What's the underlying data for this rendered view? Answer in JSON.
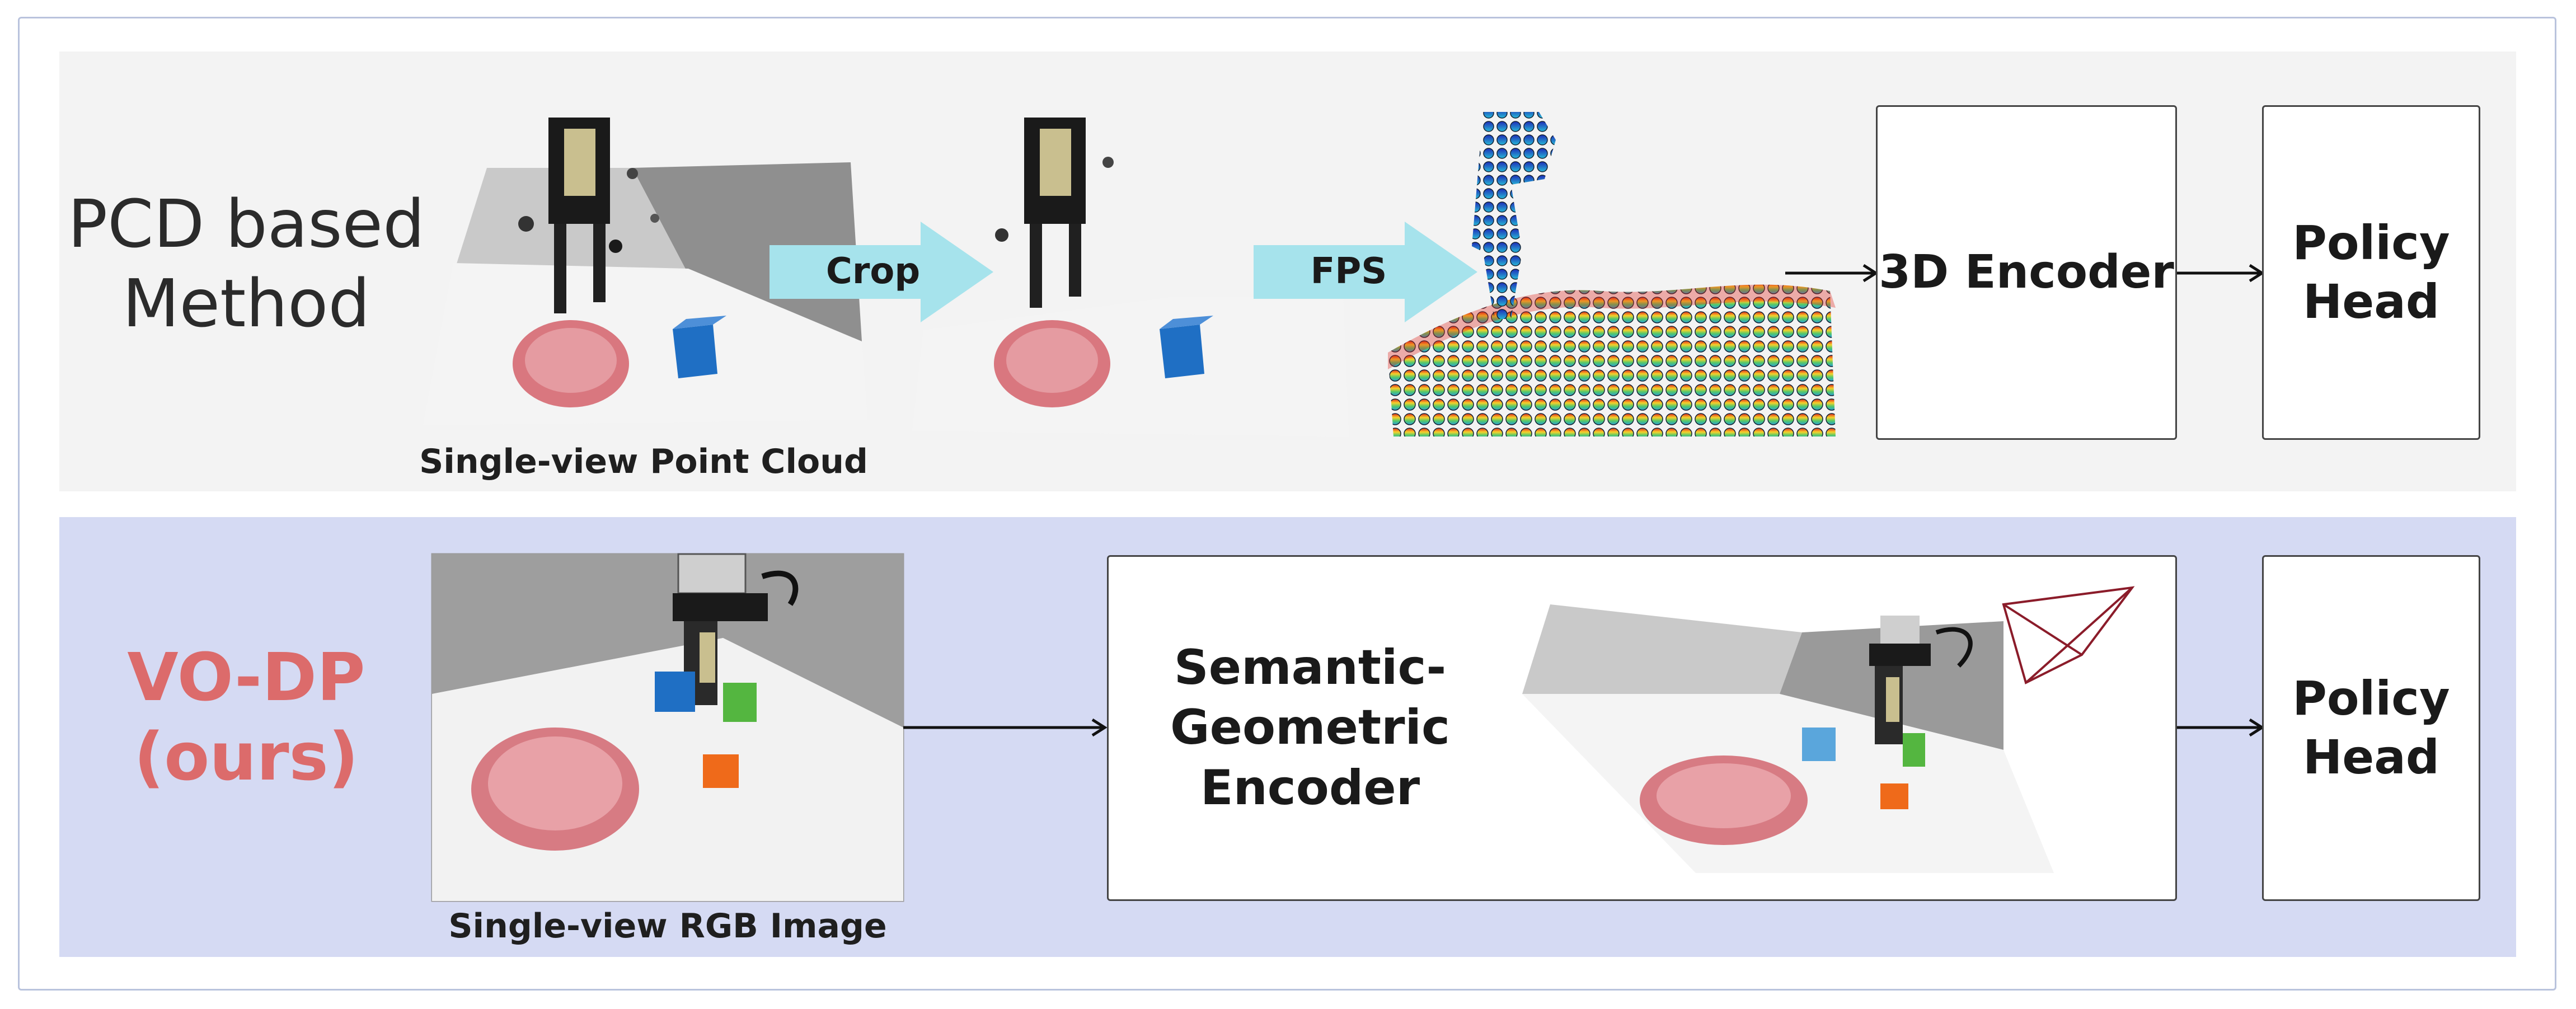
{
  "top_row": {
    "method_label": "PCD based\nMethod",
    "caption": "Single-view Point Cloud",
    "crop_label": "Crop",
    "fps_label": "FPS",
    "encoder_label": "3D Encoder",
    "head_label": "Policy\nHead"
  },
  "bottom_row": {
    "method_label": "VO-DP\n(ours)",
    "caption": "Single-view RGB Image",
    "encoder_label": "Semantic-\nGeometric\nEncoder",
    "head_label": "Policy\nHead"
  },
  "colors": {
    "top_panel": "#f3f3f3",
    "bottom_panel": "#d5daf3",
    "accent_red": "#dc6b6b",
    "block_arrow": "#a6e3ec",
    "cube_blue": "#1f6fc4",
    "cube_green": "#54b640",
    "cube_orange": "#ef6a1a",
    "bowl_pink": "#d97c84",
    "camera_frustum": "#8b1c2a"
  },
  "icons": {
    "block_arrow": "chevron-arrow",
    "thin_arrow": "right-arrow",
    "camera": "camera-frustum-icon"
  }
}
